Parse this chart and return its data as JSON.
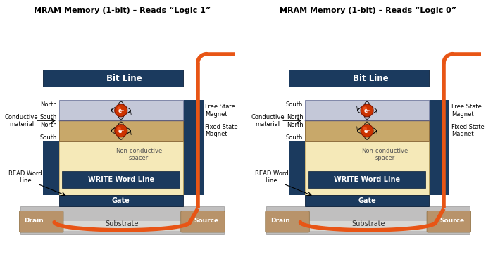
{
  "title1": "MRAM Memory (1-bit) – Reads “Logic 1”",
  "title2": "MRAM Memory (1-bit) – Reads “Logic 0”",
  "dark_blue": "#1b3a5e",
  "orange": "#e85515",
  "light_yellow": "#f5e9b8",
  "tan_fixed": "#c8a86a",
  "gray_free": "#c8ccd8",
  "substrate_gray": "#c0bfbf",
  "drain_tan": "#b8936a",
  "white": "#ffffff",
  "black": "#000000",
  "bg": "#ffffff",
  "logic1_free_poles": [
    "North",
    "South"
  ],
  "logic1_fixed_poles": [
    "North",
    "South"
  ],
  "logic0_free_poles": [
    "South",
    "North"
  ],
  "logic0_fixed_poles": [
    "North",
    "South"
  ]
}
